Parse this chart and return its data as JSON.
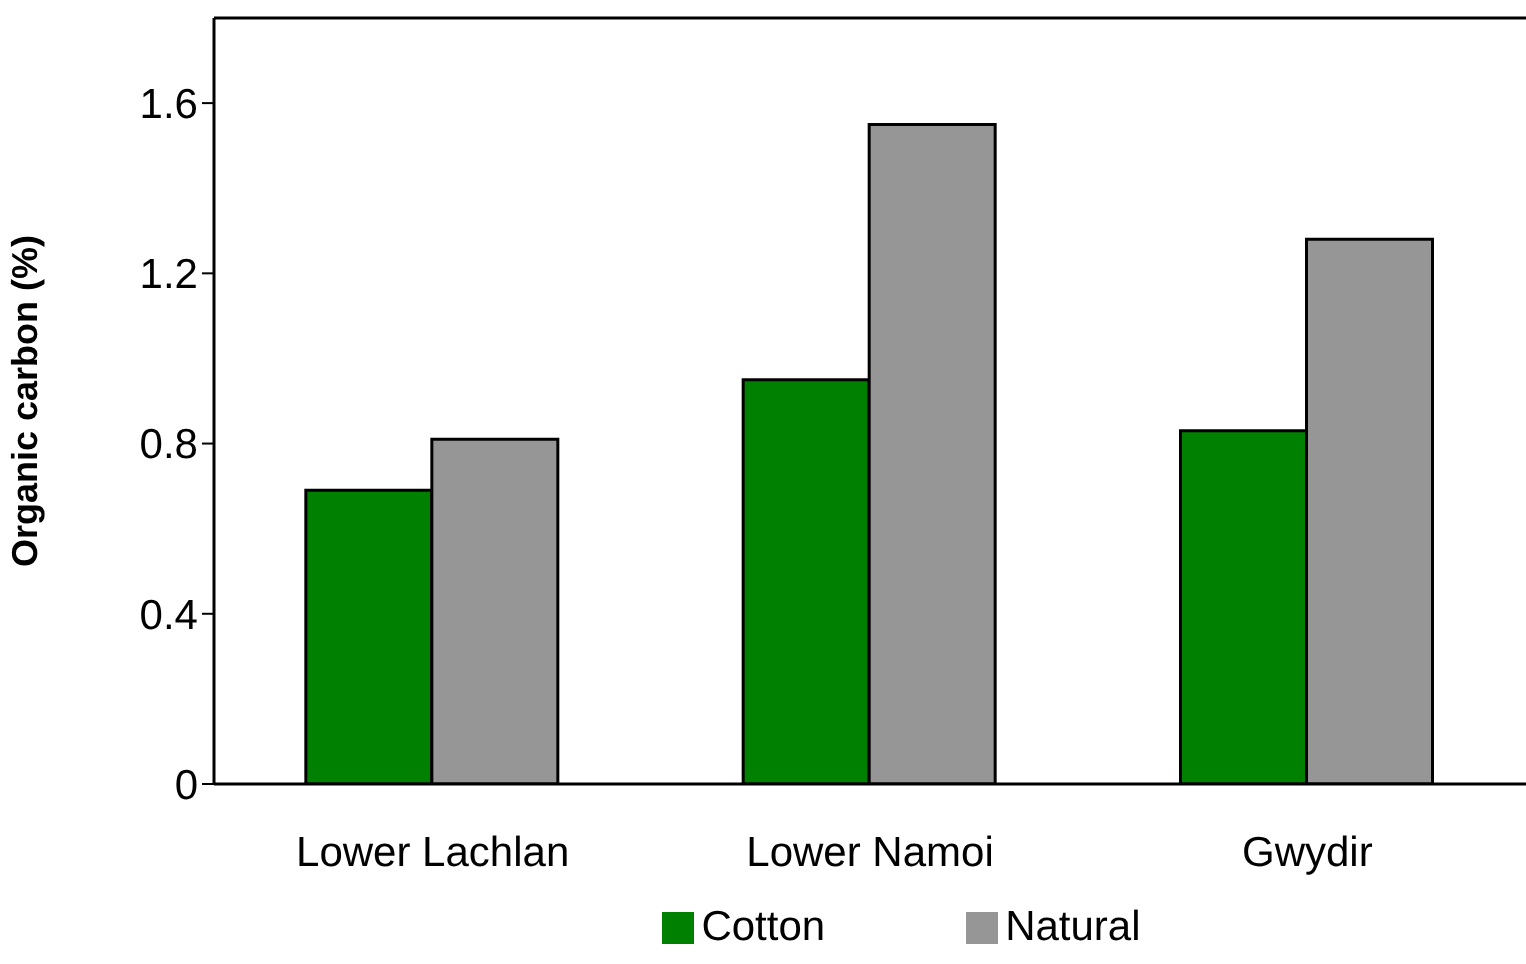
{
  "chart_data": {
    "type": "bar",
    "ylabel": "Organic carbon (%)",
    "categories": [
      "Lower Lachlan",
      "Lower Namoi",
      "Gwydir"
    ],
    "series": [
      {
        "name": "Cotton",
        "color": "#008000",
        "values": [
          0.69,
          0.95,
          0.83
        ]
      },
      {
        "name": "Natural",
        "color": "#969696",
        "values": [
          0.81,
          1.55,
          1.28
        ]
      }
    ],
    "ylim": [
      0,
      1.8
    ],
    "yticks": [
      0,
      0.4,
      0.8,
      1.2,
      1.6
    ],
    "grid": false,
    "legend": "bottom"
  }
}
